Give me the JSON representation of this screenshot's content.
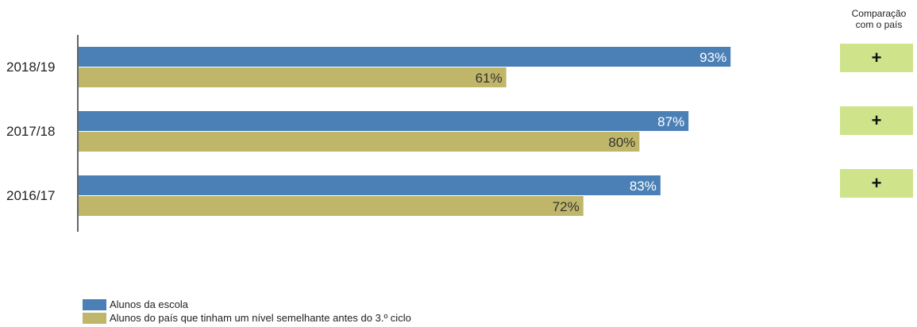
{
  "chart_data": {
    "type": "bar",
    "orientation": "horizontal",
    "categories": [
      "2018/19",
      "2017/18",
      "2016/17"
    ],
    "series": [
      {
        "name": "Alunos da escola",
        "values": [
          93,
          87,
          83
        ],
        "color": "#4a80b5"
      },
      {
        "name": "Alunos do país que tinham um nível semelhante antes do 3.º ciclo",
        "values": [
          61,
          80,
          72
        ],
        "color": "#c0b66a"
      }
    ],
    "value_suffix": "%",
    "xlim": [
      0,
      100
    ],
    "grid": false,
    "legend_position": "bottom-left"
  },
  "comparison": {
    "header_line1": "Comparação",
    "header_line2": "com o país",
    "signs": [
      "+",
      "+",
      "+"
    ],
    "color": "#cfe38a"
  }
}
